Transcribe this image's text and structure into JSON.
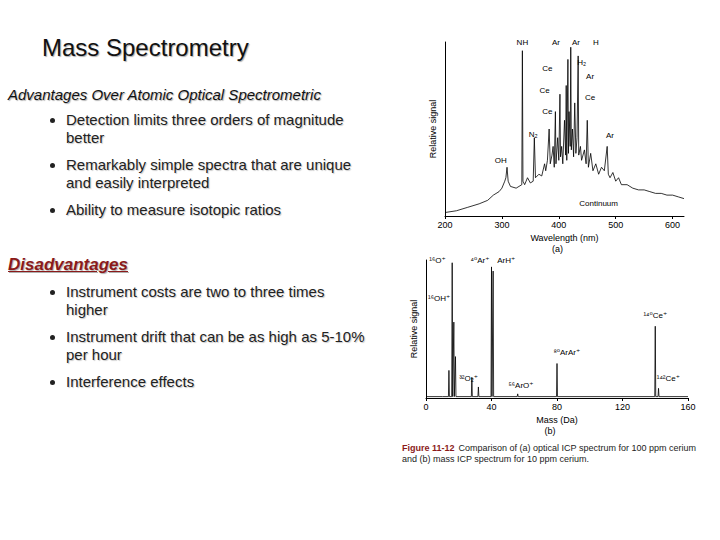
{
  "title": "Mass Spectrometry",
  "sections": [
    {
      "heading": "Advantages Over Atomic Optical Spectrometric",
      "bullets": [
        "Detection limits three orders of magnitude better",
        "Remarkably simple spectra that are unique and easily interpreted",
        "Ability to measure isotopic ratios"
      ]
    },
    {
      "heading": "Disadvantages",
      "bullets": [
        "Instrument costs are two to three times higher",
        "Instrument drift that can be as high as 5-10% per hour",
        "Interference effects"
      ]
    }
  ],
  "caption": {
    "label": "Figure 11-12",
    "text": "Comparison of (a) optical ICP spectrum for 100 ppm cerium and (b) mass ICP spectrum for 10 ppm cerium."
  },
  "chart_data": [
    {
      "type": "line",
      "panel": "(a)",
      "xlabel": "Wavelength (nm)",
      "ylabel": "Relative signal",
      "color": "#000000",
      "grid": false,
      "tick_labels": "x",
      "xlim": [
        200,
        620
      ],
      "xticks": [
        200,
        300,
        400,
        500,
        600
      ],
      "ylim": [
        0,
        100
      ],
      "x": [
        200,
        220,
        240,
        260,
        275,
        285,
        295,
        300,
        305,
        307,
        309,
        311,
        315,
        325,
        330,
        335,
        336,
        337,
        340,
        345,
        350,
        355,
        357,
        359,
        365,
        370,
        375,
        377,
        380,
        383,
        385,
        388,
        390,
        392,
        394,
        395,
        398,
        400,
        402,
        403,
        405,
        407,
        410,
        412,
        413,
        414,
        416,
        417,
        418,
        420,
        421,
        422,
        424,
        426,
        428,
        430,
        432,
        434,
        435,
        438,
        440,
        445,
        448,
        450,
        452,
        456,
        460,
        465,
        470,
        475,
        480,
        485,
        487,
        490,
        495,
        500,
        505,
        510,
        520,
        530,
        540,
        550,
        560,
        570,
        580,
        590,
        600,
        610,
        620
      ],
      "values": [
        2,
        3,
        5,
        7,
        9,
        12,
        14,
        16,
        20,
        22,
        28,
        20,
        17,
        16,
        17,
        18,
        95,
        20,
        18,
        22,
        19,
        20,
        45,
        22,
        24,
        23,
        30,
        26,
        32,
        50,
        30,
        35,
        40,
        28,
        60,
        30,
        45,
        32,
        70,
        34,
        40,
        30,
        55,
        35,
        75,
        32,
        90,
        36,
        60,
        40,
        97,
        38,
        50,
        34,
        65,
        36,
        45,
        92,
        35,
        40,
        32,
        38,
        30,
        55,
        28,
        36,
        26,
        30,
        24,
        28,
        26,
        40,
        24,
        22,
        25,
        20,
        22,
        18,
        18,
        16,
        15,
        15,
        14,
        13,
        13,
        12,
        12,
        11,
        10
      ],
      "annotations": [
        {
          "text": "NH",
          "x": 336,
          "y": 100
        },
        {
          "text": "Ar",
          "x": 395,
          "y": 100
        },
        {
          "text": "Ar",
          "x": 430,
          "y": 100
        },
        {
          "text": "H",
          "x": 465,
          "y": 100
        },
        {
          "text": "H₂",
          "x": 440,
          "y": 88
        },
        {
          "text": "Ce",
          "x": 380,
          "y": 85
        },
        {
          "text": "Ar",
          "x": 455,
          "y": 80
        },
        {
          "text": "Ce",
          "x": 375,
          "y": 72
        },
        {
          "text": "Ce",
          "x": 455,
          "y": 68
        },
        {
          "text": "Ce",
          "x": 380,
          "y": 60
        },
        {
          "text": "Ar",
          "x": 490,
          "y": 46
        },
        {
          "text": "N₂",
          "x": 355,
          "y": 47
        },
        {
          "text": "OH",
          "x": 298,
          "y": 32
        },
        {
          "text": "Continuum",
          "x": 470,
          "y": 7
        }
      ]
    },
    {
      "type": "line",
      "panel": "(b)",
      "xlabel": "Mass (Da)",
      "ylabel": "Relative signal",
      "color": "#000000",
      "grid": false,
      "tick_labels": "x",
      "xlim": [
        0,
        160
      ],
      "xticks": [
        0,
        40,
        80,
        120,
        160
      ],
      "ylim": [
        0,
        100
      ],
      "x": [
        0,
        10,
        13.7,
        14,
        14.3,
        15.7,
        16,
        16.3,
        16.7,
        17,
        17.3,
        17.7,
        18,
        18.3,
        27.7,
        28,
        28.3,
        31.7,
        32,
        32.3,
        39.7,
        40,
        40.3,
        40.7,
        41,
        41.3,
        55.7,
        56,
        56.3,
        79.7,
        80,
        80.3,
        139.7,
        140,
        140.3,
        141.7,
        142,
        142.3,
        160
      ],
      "values": [
        1,
        1,
        1,
        20,
        1,
        1,
        98,
        1,
        1,
        55,
        1,
        1,
        30,
        1,
        1,
        15,
        1,
        1,
        8,
        1,
        1,
        95,
        1,
        1,
        92,
        1,
        1,
        3,
        1,
        1,
        25,
        1,
        1,
        52,
        1,
        1,
        7,
        1,
        1
      ],
      "annotations": [
        {
          "text": "¹⁶O⁺",
          "x": 7,
          "y": 100
        },
        {
          "text": "⁴⁰Ar⁺",
          "x": 33,
          "y": 100
        },
        {
          "text": "ArH⁺",
          "x": 49,
          "y": 100
        },
        {
          "text": "¹⁶OH⁺",
          "x": 8,
          "y": 72
        },
        {
          "text": "³²O₂⁺",
          "x": 26,
          "y": 14
        },
        {
          "text": "⁵⁶ArO⁺",
          "x": 58,
          "y": 9
        },
        {
          "text": "⁸⁰ArAr⁺",
          "x": 86,
          "y": 33
        },
        {
          "text": "¹⁴⁰Ce⁺",
          "x": 140,
          "y": 60
        },
        {
          "text": "¹⁴²Ce⁺",
          "x": 148,
          "y": 14
        }
      ]
    }
  ]
}
